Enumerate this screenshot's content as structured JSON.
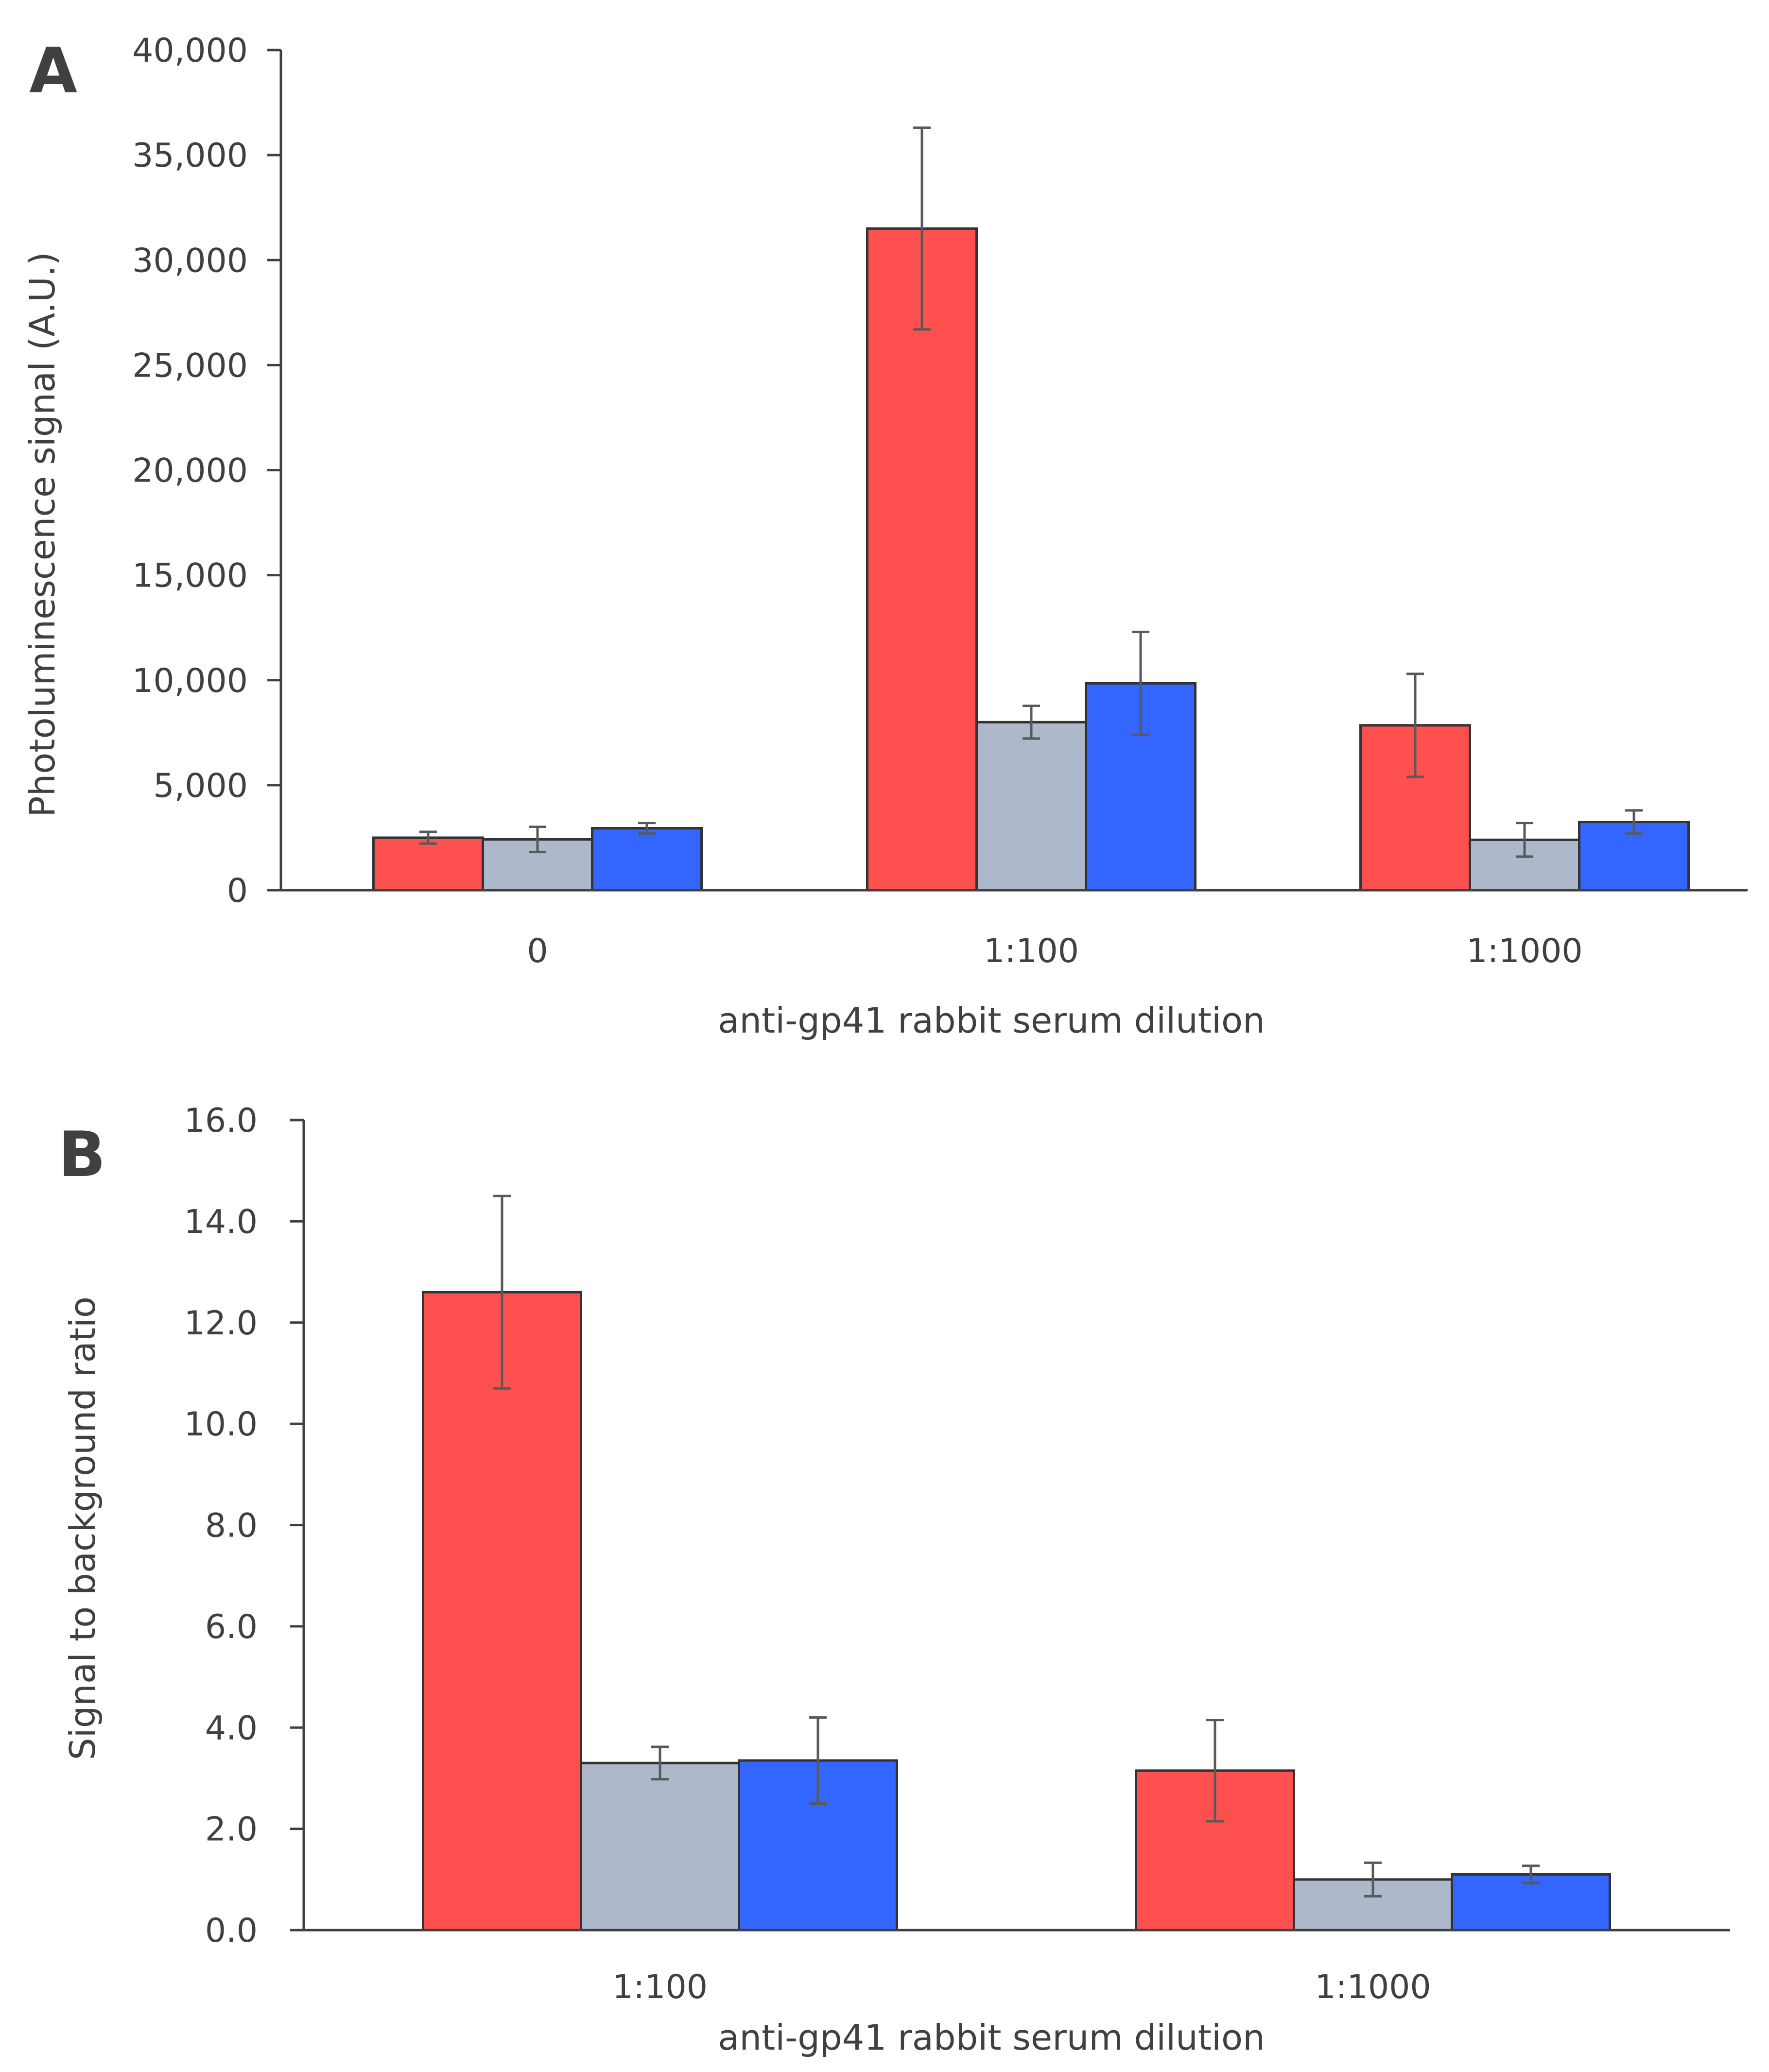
{
  "chart_data": [
    {
      "panel": "A",
      "type": "bar",
      "categories": [
        "0",
        "1:100",
        "1:1000"
      ],
      "series": [
        {
          "name": "series-red",
          "color": "#FF5050",
          "values": [
            2500,
            31500,
            7850
          ],
          "errors": [
            280,
            4800,
            2450
          ]
        },
        {
          "name": "series-gray",
          "color": "#ADB9CA",
          "values": [
            2420,
            8000,
            2400
          ],
          "errors": [
            600,
            780,
            800
          ]
        },
        {
          "name": "series-blue",
          "color": "#3366FF",
          "values": [
            2950,
            9850,
            3250
          ],
          "errors": [
            250,
            2450,
            550
          ]
        }
      ],
      "ylim": [
        0,
        40000
      ],
      "yticks": [
        0,
        5000,
        10000,
        15000,
        20000,
        25000,
        30000,
        35000,
        40000
      ],
      "ytick_labels": [
        "0",
        "5,000",
        "10,000",
        "15,000",
        "20,000",
        "25,000",
        "30,000",
        "35,000",
        "40,000"
      ],
      "xlabel": "anti-gp41 rabbit serum dilution",
      "ylabel": "Photoluminescence signal (A.U.)",
      "grid": false,
      "legend": "none"
    },
    {
      "panel": "B",
      "type": "bar",
      "categories": [
        "1:100",
        "1:1000"
      ],
      "series": [
        {
          "name": "series-red",
          "color": "#FF5050",
          "values": [
            12.6,
            3.15
          ],
          "errors": [
            1.9,
            1.0
          ]
        },
        {
          "name": "series-gray",
          "color": "#ADB9CA",
          "values": [
            3.3,
            1.0
          ],
          "errors": [
            0.32,
            0.33
          ]
        },
        {
          "name": "series-blue",
          "color": "#3366FF",
          "values": [
            3.35,
            1.1
          ],
          "errors": [
            0.85,
            0.17
          ]
        }
      ],
      "ylim": [
        0,
        16
      ],
      "yticks": [
        0,
        2,
        4,
        6,
        8,
        10,
        12,
        14,
        16
      ],
      "ytick_labels": [
        "0.0",
        "2.0",
        "4.0",
        "6.0",
        "8.0",
        "10.0",
        "12.0",
        "14.0",
        "16.0"
      ],
      "xlabel": "anti-gp41 rabbit serum dilution",
      "ylabel": "Signal to background ratio",
      "grid": false,
      "legend": "none"
    }
  ]
}
